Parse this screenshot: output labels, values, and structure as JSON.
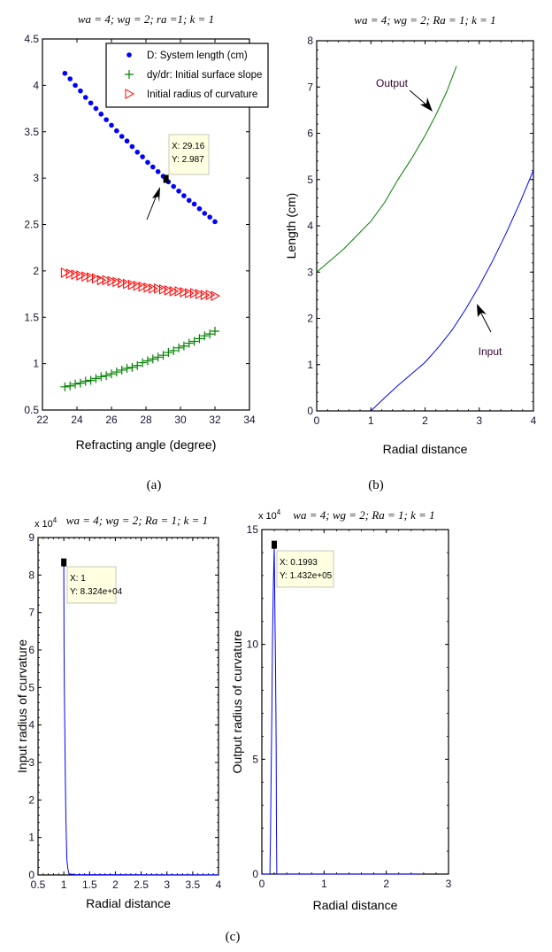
{
  "figure_labels": [
    "(a)",
    "(b)",
    "(c)"
  ],
  "chart_data": [
    {
      "type": "scatter",
      "title": "wa = 4; wg = 2; ra =1; k = 1",
      "xlabel": "Refracting angle (degree)",
      "ylabel": "",
      "xlim": [
        22,
        34
      ],
      "ylim": [
        0.5,
        4.5
      ],
      "xticks": [
        22,
        24,
        26,
        28,
        30,
        32,
        34
      ],
      "xtick_labels": [
        "22",
        "24",
        "26",
        "28",
        "30",
        "32",
        "34"
      ],
      "yticks": [
        0.5,
        1,
        1.5,
        2,
        2.5,
        3,
        3.5,
        4,
        4.5
      ],
      "ytick_labels": [
        "0.5",
        "1",
        "1.5",
        "2",
        "2.5",
        "3",
        "3.5",
        "4",
        "4.5"
      ],
      "grid": false,
      "legend_placement": "top-right",
      "x": [
        23.3,
        23.6,
        23.9,
        24.2,
        24.5,
        24.8,
        25.1,
        25.4,
        25.7,
        26.0,
        26.3,
        26.6,
        26.9,
        27.2,
        27.5,
        27.8,
        28.1,
        28.4,
        28.7,
        29.0,
        29.3,
        29.6,
        29.9,
        30.2,
        30.5,
        30.8,
        31.1,
        31.4,
        31.7,
        32.0
      ],
      "series": [
        {
          "name": "D: System length (cm)",
          "marker": "dot",
          "color": "#0000ff",
          "values": [
            4.13,
            4.07,
            4.0,
            3.94,
            3.87,
            3.81,
            3.75,
            3.69,
            3.63,
            3.57,
            3.51,
            3.45,
            3.4,
            3.34,
            3.28,
            3.23,
            3.17,
            3.12,
            3.07,
            3.02,
            2.96,
            2.91,
            2.86,
            2.81,
            2.76,
            2.72,
            2.67,
            2.62,
            2.58,
            2.53
          ]
        },
        {
          "name": "dy/dr: Initial surface slope",
          "marker": "plus",
          "color": "#008000",
          "values": [
            0.75,
            0.76,
            0.78,
            0.79,
            0.81,
            0.82,
            0.84,
            0.86,
            0.87,
            0.89,
            0.91,
            0.93,
            0.95,
            0.96,
            0.98,
            1.01,
            1.03,
            1.05,
            1.07,
            1.09,
            1.12,
            1.14,
            1.17,
            1.19,
            1.22,
            1.24,
            1.27,
            1.3,
            1.32,
            1.35
          ]
        },
        {
          "name": "Initial radius of curvature",
          "marker": "triangle-right",
          "color": "#ff0000",
          "values": [
            1.98,
            1.97,
            1.96,
            1.95,
            1.94,
            1.93,
            1.92,
            1.9,
            1.9,
            1.89,
            1.88,
            1.87,
            1.86,
            1.85,
            1.84,
            1.83,
            1.82,
            1.81,
            1.81,
            1.8,
            1.79,
            1.78,
            1.78,
            1.77,
            1.76,
            1.76,
            1.75,
            1.74,
            1.74,
            1.73
          ]
        }
      ],
      "datatip": {
        "x": 29.16,
        "y": 2.987,
        "x_label": "X: 29.16",
        "y_label": "Y: 2.987"
      }
    },
    {
      "type": "line",
      "title": "wa = 4; wg = 2; Ra = 1; k = 1",
      "xlabel": "Radial distance",
      "ylabel": "Length (cm)",
      "xlim": [
        0,
        4
      ],
      "ylim": [
        0,
        8
      ],
      "xticks": [
        0,
        1,
        2,
        3,
        4
      ],
      "xtick_labels": [
        "0",
        "1",
        "2",
        "3",
        "4"
      ],
      "yticks": [
        0,
        1,
        2,
        3,
        4,
        5,
        6,
        7,
        8
      ],
      "ytick_labels": [
        "0",
        "1",
        "2",
        "3",
        "4",
        "5",
        "6",
        "7",
        "8"
      ],
      "minor_tick_step": [
        0.2,
        0.2
      ],
      "grid": false,
      "series": [
        {
          "name": "Output",
          "color": "#008000",
          "x": [
            0,
            0.25,
            0.5,
            0.75,
            1.0,
            1.25,
            1.5,
            1.75,
            2.0,
            2.2,
            2.4,
            2.58
          ],
          "values": [
            3.0,
            3.25,
            3.5,
            3.8,
            4.1,
            4.5,
            5.0,
            5.45,
            5.95,
            6.4,
            6.9,
            7.45
          ]
        },
        {
          "name": "Input",
          "color": "#0000ff",
          "x": [
            1.0,
            1.25,
            1.5,
            1.75,
            2.0,
            2.25,
            2.5,
            2.75,
            3.0,
            3.25,
            3.5,
            3.75,
            4.0
          ],
          "values": [
            0,
            0.28,
            0.55,
            0.8,
            1.05,
            1.38,
            1.75,
            2.2,
            2.7,
            3.25,
            3.85,
            4.5,
            5.2
          ]
        }
      ],
      "annotations": [
        "Output",
        "Input"
      ]
    },
    {
      "type": "line",
      "title": "wa = 4; wg = 2; Ra = 1; k = 1",
      "multiplier": "x 10",
      "multiplier_exponent": "4",
      "xlabel": "Radial distance",
      "ylabel": "Input radius of curvature",
      "xlim": [
        0.5,
        4
      ],
      "ylim": [
        0,
        90000
      ],
      "xticks": [
        0.5,
        1,
        1.5,
        2,
        2.5,
        3,
        3.5,
        4
      ],
      "xtick_labels": [
        "0.5",
        "1",
        "1.5",
        "2",
        "2.5",
        "3",
        "3.5",
        "4"
      ],
      "yticks": [
        0,
        10000,
        20000,
        30000,
        40000,
        50000,
        60000,
        70000,
        80000,
        90000
      ],
      "ytick_labels": [
        "0",
        "1",
        "2",
        "3",
        "4",
        "5",
        "6",
        "7",
        "8",
        "9"
      ],
      "minor_tick_step": [
        0.1,
        2000
      ],
      "grid": false,
      "series": [
        {
          "color": "#0000ff",
          "x": [
            1.0,
            1.005,
            1.01,
            1.02,
            1.03,
            1.04,
            1.06,
            1.08,
            1.1,
            1.2,
            2.0,
            3.0,
            4.0
          ],
          "values": [
            83240,
            61000,
            50000,
            38000,
            25000,
            15000,
            4000,
            1500,
            300,
            100,
            50,
            30,
            20
          ]
        }
      ],
      "datatip": {
        "x": 1,
        "y": 83240,
        "x_label": "X: 1",
        "y_label": "Y: 8.324e+04"
      }
    },
    {
      "type": "line",
      "title": "wa = 4; wg = 2; Ra = 1; k = 1",
      "multiplier": "x 10",
      "multiplier_exponent": "4",
      "xlabel": "Radial distance",
      "ylabel": "Output radius of curvature",
      "xlim": [
        0,
        3
      ],
      "ylim": [
        0,
        150000
      ],
      "xticks": [
        0,
        1,
        2,
        3
      ],
      "xtick_labels": [
        "0",
        "1",
        "2",
        "3"
      ],
      "yticks": [
        0,
        50000,
        100000,
        150000
      ],
      "ytick_labels": [
        "0",
        "5",
        "10",
        "15"
      ],
      "minor_tick_step": [
        0.2,
        10000
      ],
      "grid": false,
      "series": [
        {
          "color": "#0000ff",
          "x": [
            0,
            0.13,
            0.14,
            0.15,
            0.16,
            0.17,
            0.185,
            0.1993,
            0.21,
            0.22,
            0.23,
            0.235,
            0.24,
            1.0,
            2.0,
            2.58
          ],
          "values": [
            0,
            0,
            17000,
            47000,
            70000,
            102000,
            125000,
            143200,
            112000,
            89000,
            55000,
            19000,
            0,
            0,
            0,
            0
          ]
        }
      ],
      "datatip": {
        "x": 0.1993,
        "y": 143200,
        "x_label": "X: 0.1993",
        "y_label": "Y: 1.432e+05"
      }
    }
  ]
}
